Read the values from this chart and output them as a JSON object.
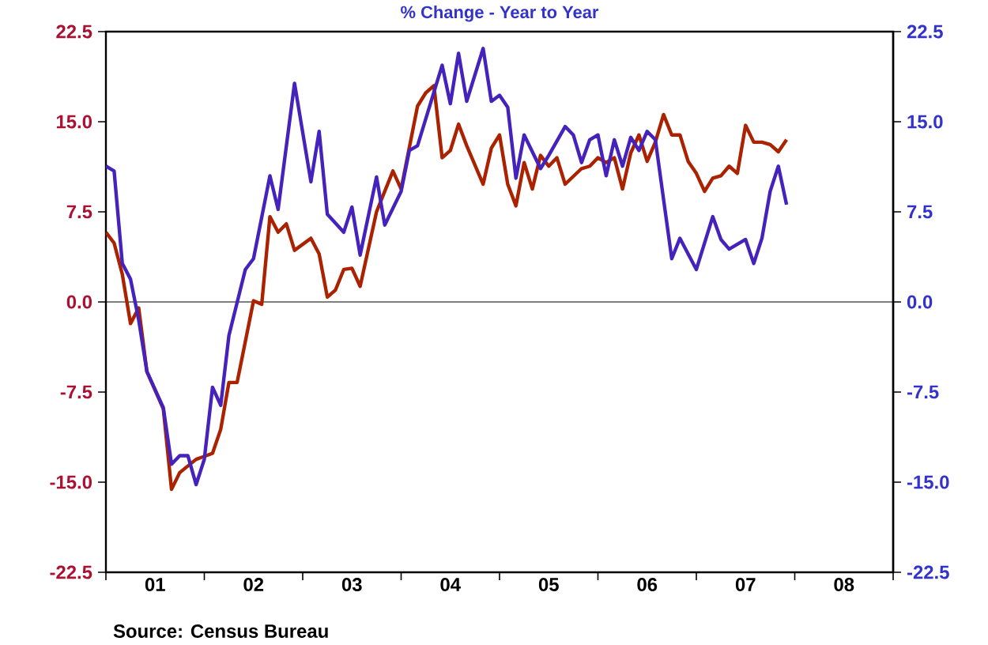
{
  "chart_data": {
    "type": "line",
    "title": "% Change - Year to Year",
    "xlim": [
      "2001-01",
      "2009-01"
    ],
    "xticks": [
      {
        "value": "2001-01",
        "label": null
      },
      {
        "value": "2001-07",
        "label": "01"
      },
      {
        "value": "2002-01",
        "label": null
      },
      {
        "value": "2002-07",
        "label": "02"
      },
      {
        "value": "2003-01",
        "label": null
      },
      {
        "value": "2003-07",
        "label": "03"
      },
      {
        "value": "2004-01",
        "label": null
      },
      {
        "value": "2004-07",
        "label": "04"
      },
      {
        "value": "2005-01",
        "label": null
      },
      {
        "value": "2005-07",
        "label": "05"
      },
      {
        "value": "2006-01",
        "label": null
      },
      {
        "value": "2006-07",
        "label": "06"
      },
      {
        "value": "2007-01",
        "label": null
      },
      {
        "value": "2007-07",
        "label": "07"
      },
      {
        "value": "2008-01",
        "label": null
      },
      {
        "value": "2008-07",
        "label": "08"
      },
      {
        "value": "2009-01",
        "label": null
      }
    ],
    "ylim": [
      -22.5,
      22.5
    ],
    "yticks": [
      {
        "value": -22.5,
        "label": "-22.5"
      },
      {
        "value": -15,
        "label": "-15.0"
      },
      {
        "value": -7.5,
        "label": "-7.5"
      },
      {
        "value": 0,
        "label": "0.0"
      },
      {
        "value": 7.5,
        "label": "7.5"
      },
      {
        "value": 15,
        "label": "15.0"
      },
      {
        "value": 22.5,
        "label": "22.5"
      }
    ],
    "y2lim": [
      -22.5,
      22.5
    ],
    "y2ticks": [
      {
        "value": -22.5,
        "label": "-22.5"
      },
      {
        "value": -15,
        "label": "-15.0"
      },
      {
        "value": -7.5,
        "label": "-7.5"
      },
      {
        "value": 0,
        "label": "0.0"
      },
      {
        "value": 7.5,
        "label": "7.5"
      },
      {
        "value": 15,
        "label": "15.0"
      },
      {
        "value": 22.5,
        "label": "22.5"
      }
    ],
    "ref_lines": [
      {
        "axis": "y",
        "value": 0,
        "color": "#000000"
      }
    ],
    "grid": false,
    "marker": "none",
    "line_style": "solid",
    "annotations": [
      "Source:  Census Bureau"
    ],
    "series": [
      {
        "color": "#aa2200",
        "axis": "y",
        "x": [
          "2001-01",
          "2001-02",
          "2001-03",
          "2001-04",
          "2001-05",
          "2001-06",
          "2001-08",
          "2001-09",
          "2001-10",
          "2001-12",
          "2002-02",
          "2002-03",
          "2002-04",
          "2002-05",
          "2002-07",
          "2002-08",
          "2002-09",
          "2002-10",
          "2002-11",
          "2002-12",
          "2003-02",
          "2003-03",
          "2003-04",
          "2003-05",
          "2003-06",
          "2003-07",
          "2003-08",
          "2003-10",
          "2003-11",
          "2003-12",
          "2004-01",
          "2004-03",
          "2004-04",
          "2004-05",
          "2004-06",
          "2004-07",
          "2004-08",
          "2004-09",
          "2004-11",
          "2004-12",
          "2005-01",
          "2005-02",
          "2005-03",
          "2005-04",
          "2005-05",
          "2005-06",
          "2005-07",
          "2005-08",
          "2005-09",
          "2005-11",
          "2005-12",
          "2006-01",
          "2006-02",
          "2006-03",
          "2006-04",
          "2006-05",
          "2006-06",
          "2006-07",
          "2006-08",
          "2006-09",
          "2006-10",
          "2006-11",
          "2006-12",
          "2007-01",
          "2007-02",
          "2007-03",
          "2007-04",
          "2007-05",
          "2007-06",
          "2007-07",
          "2007-08",
          "2007-09",
          "2007-10",
          "2007-11",
          "2007-12"
        ],
        "values": [
          5.8,
          4.9,
          2.3,
          -1.8,
          -0.5,
          -5.8,
          -8.9,
          -15.6,
          -14.2,
          -13.1,
          -12.6,
          -10.6,
          -6.7,
          -6.7,
          0.1,
          -0.2,
          7.1,
          5.8,
          6.5,
          4.3,
          5.3,
          4.0,
          0.4,
          1.0,
          2.7,
          2.8,
          1.3,
          7.5,
          9.2,
          10.9,
          9.4,
          16.3,
          17.4,
          18.0,
          12.0,
          12.6,
          14.8,
          13.0,
          9.8,
          12.8,
          13.9,
          9.8,
          8.0,
          11.6,
          9.4,
          12.2,
          11.3,
          12.0,
          9.8,
          11.1,
          11.3,
          12.0,
          11.6,
          12.0,
          9.4,
          12.4,
          13.9,
          11.7,
          13.3,
          15.6,
          13.9,
          13.9,
          11.7,
          10.7,
          9.2,
          10.3,
          10.5,
          11.3,
          10.7,
          14.7,
          13.3,
          13.3,
          13.1,
          12.5,
          13.5
        ]
      },
      {
        "color": "#4422bb",
        "axis": "y2",
        "x": [
          "2001-01",
          "2001-02",
          "2001-03",
          "2001-04",
          "2001-05",
          "2001-06",
          "2001-08",
          "2001-09",
          "2001-10",
          "2001-11",
          "2001-12",
          "2002-01",
          "2002-02",
          "2002-03",
          "2002-04",
          "2002-06",
          "2002-07",
          "2002-09",
          "2002-10",
          "2002-12",
          "2003-02",
          "2003-03",
          "2003-04",
          "2003-06",
          "2003-07",
          "2003-08",
          "2003-10",
          "2003-11",
          "2004-01",
          "2004-02",
          "2004-03",
          "2004-06",
          "2004-07",
          "2004-08",
          "2004-09",
          "2004-11",
          "2004-12",
          "2005-01",
          "2005-02",
          "2005-03",
          "2005-04",
          "2005-06",
          "2005-07",
          "2005-09",
          "2005-10",
          "2005-11",
          "2005-12",
          "2006-01",
          "2006-02",
          "2006-03",
          "2006-04",
          "2006-05",
          "2006-06",
          "2006-07",
          "2006-08",
          "2006-10",
          "2006-11",
          "2007-01",
          "2007-03",
          "2007-04",
          "2007-05",
          "2007-07",
          "2007-08",
          "2007-09",
          "2007-10",
          "2007-11",
          "2007-12"
        ],
        "values": [
          11.3,
          10.9,
          3.2,
          1.9,
          -1.5,
          -5.8,
          -8.8,
          -13.5,
          -12.8,
          -12.8,
          -15.2,
          -13.1,
          -7.1,
          -8.6,
          -2.8,
          2.7,
          3.6,
          10.5,
          7.7,
          18.2,
          10.0,
          14.2,
          7.3,
          5.8,
          7.9,
          3.9,
          10.4,
          6.4,
          9.2,
          12.6,
          13.0,
          19.7,
          16.5,
          20.7,
          16.7,
          21.1,
          16.7,
          17.2,
          16.2,
          10.3,
          13.9,
          11.1,
          12.2,
          14.6,
          13.9,
          11.6,
          13.5,
          13.9,
          10.5,
          13.5,
          11.3,
          13.7,
          12.6,
          14.2,
          13.5,
          3.6,
          5.3,
          2.7,
          7.1,
          5.2,
          4.4,
          5.2,
          3.2,
          5.3,
          9.2,
          11.3,
          8.1
        ]
      }
    ]
  }
}
